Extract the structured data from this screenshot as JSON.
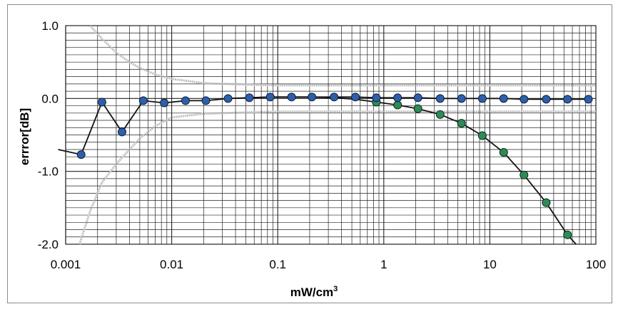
{
  "chart_data": {
    "type": "line",
    "title": "",
    "xlabel": "mW/cm",
    "xlabel_superscript": "3",
    "ylabel": "errror[dB]",
    "xscale": "log",
    "xlim": [
      0.001,
      100
    ],
    "ylim": [
      -2.0,
      1.0
    ],
    "grid": true,
    "legend": "none",
    "x_tick_labels": [
      "0.001",
      "0.01",
      "0.1",
      "1",
      "10",
      "100"
    ],
    "y_tick_labels": [
      "1.0",
      "0.0",
      "-1.0",
      "-2.0"
    ],
    "colors": {
      "blue_marker": "#2f5fa8",
      "green_marker": "#2e8b57",
      "line": "#111111",
      "limit": "#bdbdbd",
      "grid": "#222222"
    },
    "series": [
      {
        "style": "blue markers, black line",
        "points": [
          [
            0.00085,
            -0.7
          ],
          [
            0.0014,
            -0.77
          ],
          [
            0.0022,
            -0.05
          ],
          [
            0.0034,
            -0.46
          ],
          [
            0.0054,
            -0.03
          ],
          [
            0.0085,
            -0.06
          ],
          [
            0.0135,
            -0.03
          ],
          [
            0.021,
            -0.03
          ],
          [
            0.034,
            0.0
          ],
          [
            0.054,
            0.01
          ],
          [
            0.085,
            0.02
          ],
          [
            0.135,
            0.02
          ],
          [
            0.21,
            0.02
          ],
          [
            0.34,
            0.02
          ],
          [
            0.54,
            0.02
          ],
          [
            0.85,
            0.01
          ],
          [
            1.35,
            0.01
          ],
          [
            2.1,
            0.01
          ],
          [
            3.4,
            0.0
          ],
          [
            5.4,
            0.0
          ],
          [
            8.5,
            0.0
          ],
          [
            13.5,
            0.0
          ],
          [
            21,
            -0.01
          ],
          [
            34,
            -0.01
          ],
          [
            54,
            -0.01
          ],
          [
            85,
            -0.01
          ]
        ]
      },
      {
        "style": "green markers, black line",
        "points": [
          [
            0.054,
            0.01
          ],
          [
            0.085,
            0.02
          ],
          [
            0.135,
            0.02
          ],
          [
            0.21,
            0.02
          ],
          [
            0.34,
            0.01
          ],
          [
            0.54,
            -0.01
          ],
          [
            0.85,
            -0.05
          ],
          [
            1.35,
            -0.09
          ],
          [
            2.1,
            -0.14
          ],
          [
            3.4,
            -0.22
          ],
          [
            5.4,
            -0.34
          ],
          [
            8.5,
            -0.51
          ],
          [
            13.5,
            -0.74
          ],
          [
            21,
            -1.05
          ],
          [
            34,
            -1.43
          ],
          [
            54,
            -1.87
          ],
          [
            65,
            -2.0
          ]
        ]
      },
      {
        "style": "grey upper limit",
        "points": [
          [
            0.0017,
            1.0
          ],
          [
            0.0022,
            0.82
          ],
          [
            0.003,
            0.63
          ],
          [
            0.004,
            0.5
          ],
          [
            0.005,
            0.42
          ],
          [
            0.007,
            0.33
          ],
          [
            0.01,
            0.27
          ],
          [
            0.02,
            0.21
          ],
          [
            0.05,
            0.19
          ],
          [
            0.1,
            0.18
          ],
          [
            1,
            0.18
          ],
          [
            10,
            0.18
          ],
          [
            100,
            0.18
          ]
        ]
      },
      {
        "style": "grey lower limit",
        "points": [
          [
            0.00135,
            -2.0
          ],
          [
            0.0017,
            -1.55
          ],
          [
            0.0022,
            -1.15
          ],
          [
            0.003,
            -0.9
          ],
          [
            0.004,
            -0.7
          ],
          [
            0.005,
            -0.55
          ],
          [
            0.007,
            -0.38
          ],
          [
            0.01,
            -0.26
          ],
          [
            0.02,
            -0.21
          ],
          [
            0.05,
            -0.19
          ],
          [
            0.1,
            -0.18
          ],
          [
            1,
            -0.18
          ],
          [
            10,
            -0.18
          ],
          [
            100,
            -0.18
          ]
        ]
      }
    ]
  }
}
